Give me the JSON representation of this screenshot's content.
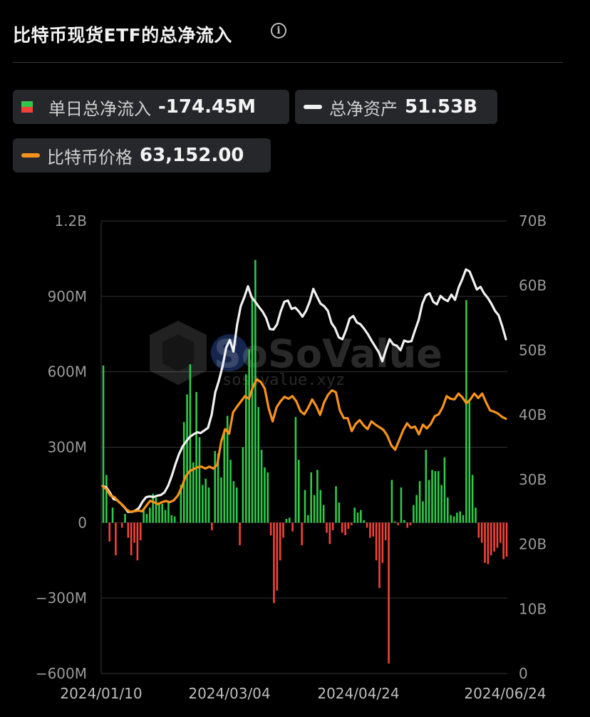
{
  "header": {
    "title": "比特币现货ETF的总净流入",
    "info_icon": "info-circle-icon"
  },
  "legend": {
    "daily_inflow": {
      "label": "单日总净流入",
      "value": "-174.45M",
      "icon": "green-red-square-icon"
    },
    "total_assets": {
      "label": "总净资产",
      "value": "51.53B",
      "color": "#f2f2f2"
    },
    "btc_price": {
      "label": "比特币价格",
      "value": "63,152.00",
      "color": "#f7931a"
    }
  },
  "watermark": {
    "brand": "SoSoValue",
    "url": "sosovalue.xyz"
  },
  "colors": {
    "positive": "#2fc84a",
    "negative": "#f0433a",
    "assets_line": "#f2f2f2",
    "price_line": "#f7931a",
    "grid": "#333333"
  },
  "chart_data": {
    "type": "bar+line",
    "x_labels": [
      "2024/01/10",
      "2024/03/04",
      "2024/04/24",
      "2024/06/24"
    ],
    "left_axis": {
      "ticks": [
        "1.2B",
        "900M",
        "600M",
        "300M",
        "0",
        "−300M",
        "−600M"
      ],
      "range": [
        -600,
        1200
      ],
      "unit": "M"
    },
    "right_axis": {
      "ticks": [
        "70B",
        "60B",
        "50B",
        "40B",
        "30B",
        "20B",
        "10B",
        "0"
      ],
      "range": [
        0,
        70
      ],
      "unit": "B"
    },
    "series": [
      {
        "kind": "bar",
        "values": [
          625,
          190,
          -75,
          60,
          -130,
          0,
          -20,
          35,
          -60,
          -130,
          -80,
          -150,
          -70,
          50,
          35,
          60,
          115,
          100,
          75,
          75,
          50,
          80,
          30,
          25,
          0,
          150,
          400,
          510,
          630,
          240,
          520,
          340,
          150,
          175,
          140,
          -30,
          285,
          275,
          180,
          370,
          425,
          250,
          165,
          140,
          -90,
          300,
          590,
          690,
          900,
          1045,
          460,
          290,
          220,
          200,
          -50,
          -320,
          -270,
          -150,
          -60,
          15,
          20,
          -35,
          420,
          250,
          -90,
          130,
          30,
          200,
          110,
          210,
          130,
          70,
          -40,
          -85,
          -30,
          145,
          80,
          -40,
          -50,
          -25,
          -10,
          60,
          40,
          50,
          10,
          -20,
          -60,
          -55,
          -150,
          -260,
          -160,
          -70,
          -560,
          170,
          5,
          -10,
          140,
          10,
          -20,
          -10,
          70,
          110,
          165,
          85,
          290,
          170,
          210,
          205,
          205,
          150,
          260,
          100,
          30,
          25,
          40,
          45,
          30,
          885,
          485,
          190,
          60,
          -60,
          -80,
          -160,
          -165,
          -130,
          -115,
          -100,
          -80,
          -145,
          -135
        ]
      },
      {
        "kind": "line",
        "name": "总净资产",
        "axis": "right",
        "values": [
          29.0,
          28.8,
          28.0,
          27.0,
          26.8,
          26.3,
          25.7,
          25.0,
          25.0,
          25.2,
          25.6,
          26.6,
          27.3,
          27.4,
          27.3,
          27.5,
          27.6,
          28.0,
          29.0,
          30.5,
          32.3,
          33.9,
          35.1,
          35.9,
          36.6,
          37.0,
          37.3,
          37.2,
          37.6,
          38.0,
          40.0,
          43.5,
          45.3,
          47.5,
          50.4,
          51.6,
          49.8,
          53.9,
          56.8,
          58.2,
          59.9,
          58.2,
          57.5,
          56.7,
          56.0,
          55.0,
          53.3,
          53.2,
          54.0,
          56.0,
          57.5,
          57.7,
          56.4,
          56.6,
          56.0,
          55.2,
          56.1,
          57.5,
          59.5,
          58.3,
          57.2,
          56.8,
          56.1,
          54.2,
          53.4,
          52.0,
          51.7,
          53.1,
          54.9,
          55.3,
          54.3,
          54.0,
          53.3,
          52.5,
          51.5,
          50.6,
          49.7,
          48.3,
          50.1,
          51.7,
          50.9,
          50.7,
          50.0,
          51.5,
          51.3,
          51.4,
          53.1,
          54.7,
          57.2,
          58.5,
          58.8,
          57.5,
          57.1,
          58.4,
          57.9,
          57.6,
          58.6,
          57.8,
          59.7,
          61.0,
          62.5,
          62.2,
          60.8,
          59.4,
          59.8,
          58.8,
          58.1,
          57.2,
          56.1,
          55.4,
          53.7,
          51.7
        ]
      },
      {
        "kind": "line",
        "name": "比特币价格",
        "axis": "right",
        "values": [
          29.0,
          28.5,
          27.5,
          27.3,
          26.6,
          26.1,
          25.4,
          25.0,
          25.1,
          25.2,
          25.1,
          25.9,
          26.7,
          26.5,
          26.2,
          26.5,
          26.7,
          26.5,
          26.8,
          27.5,
          28.8,
          30.5,
          31.3,
          31.6,
          31.9,
          32.0,
          31.7,
          32.0,
          31.7,
          32.3,
          35.9,
          37.8,
          37.1,
          40.4,
          41.3,
          42.1,
          42.9,
          42.5,
          44.3,
          45.5,
          45.1,
          44.1,
          41.0,
          39.0,
          41.2,
          42.1,
          42.8,
          42.5,
          42.9,
          42.1,
          40.6,
          40.1,
          41.1,
          42.4,
          41.4,
          40.0,
          41.9,
          43.1,
          43.8,
          43.5,
          40.7,
          39.5,
          39.5,
          37.5,
          38.6,
          39.2,
          38.4,
          37.8,
          39.0,
          38.5,
          38.1,
          37.7,
          36.8,
          35.3,
          34.6,
          36.1,
          37.6,
          38.7,
          38.0,
          38.2,
          37.0,
          38.5,
          37.9,
          38.6,
          39.8,
          40.1,
          41.2,
          42.9,
          42.5,
          42.4,
          43.3,
          42.7,
          41.8,
          42.4,
          43.3,
          42.6,
          43.3,
          41.9,
          40.7,
          40.5,
          40.2,
          39.7,
          39.4
        ]
      }
    ]
  }
}
